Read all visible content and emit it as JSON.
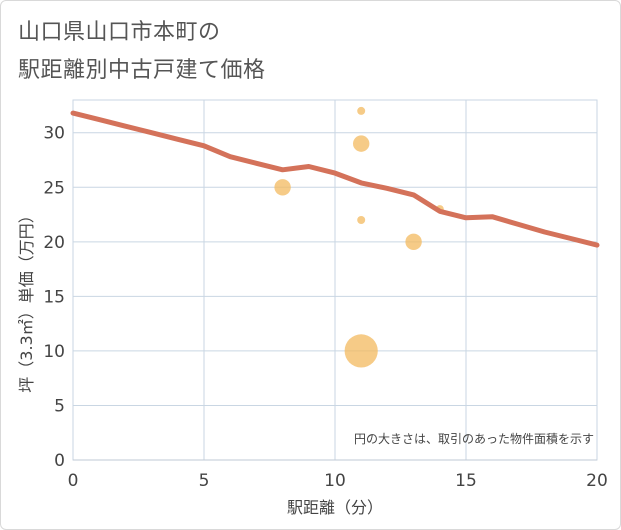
{
  "title_lines": [
    "山口県山口市本町の",
    "駅距離別中古戸建て価格"
  ],
  "chart_data": {
    "type": "scatter",
    "title": "山口県山口市本町の駅距離別中古戸建て価格",
    "xlabel": "駅距離（分）",
    "ylabel": "坪（3.3㎡）単価（万円）",
    "xlim": [
      0,
      20
    ],
    "ylim": [
      0,
      33
    ],
    "xticks": [
      0,
      5,
      10,
      15,
      20
    ],
    "yticks": [
      0,
      5,
      10,
      15,
      20,
      25,
      30
    ],
    "grid": true,
    "note": "円の大きさは、取引のあった物件面積を示す",
    "colors": {
      "bubble": "#f3b95f",
      "trend": "#d4725a",
      "grid": "#c9d6e3"
    },
    "scatter": [
      {
        "x": 8,
        "y": 25,
        "size": 2
      },
      {
        "x": 11,
        "y": 32,
        "size": 1
      },
      {
        "x": 11,
        "y": 29,
        "size": 2
      },
      {
        "x": 11,
        "y": 22,
        "size": 1
      },
      {
        "x": 11,
        "y": 10,
        "size": 4
      },
      {
        "x": 13,
        "y": 20,
        "size": 2
      },
      {
        "x": 14,
        "y": 23,
        "size": 1
      }
    ],
    "trend": {
      "x": [
        0,
        1,
        2,
        3,
        4,
        5,
        6,
        7,
        8,
        9,
        10,
        11,
        12,
        13,
        14,
        15,
        16,
        17,
        18,
        19,
        20
      ],
      "y": [
        31.8,
        31.2,
        30.6,
        30.0,
        29.4,
        28.8,
        27.8,
        27.2,
        26.6,
        26.9,
        26.3,
        25.4,
        24.9,
        24.3,
        22.8,
        22.2,
        22.3,
        21.6,
        20.9,
        20.3,
        19.7
      ]
    }
  }
}
